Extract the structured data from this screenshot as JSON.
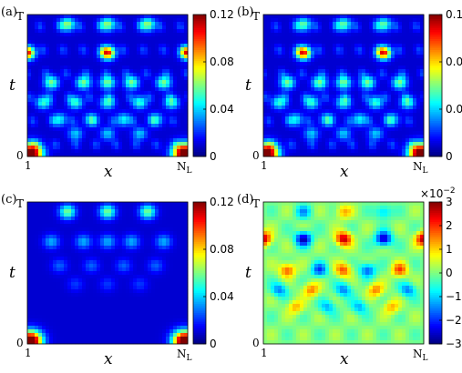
{
  "chart_data": [
    {
      "type": "heatmap",
      "panel_label": "(a)",
      "xlabel": "x",
      "ylabel": "t",
      "x_ticks": [
        "1",
        "N_L"
      ],
      "y_ticks": [
        "0",
        "T"
      ],
      "colorbar": {
        "min": 0,
        "max": 0.12,
        "ticks": [
          "0",
          "0.04",
          "0.08",
          "0.12"
        ],
        "scale_note": ""
      },
      "colormap": "jet",
      "pattern": "a",
      "notable_values": {
        "corner_hotspot": 0.12,
        "edge_spots_mid": 0.09,
        "center_spot": 0.09,
        "background": 0.01
      }
    },
    {
      "type": "heatmap",
      "panel_label": "(b)",
      "xlabel": "x",
      "ylabel": "t",
      "x_ticks": [
        "1",
        "N_L"
      ],
      "y_ticks": [
        "0",
        "T"
      ],
      "colorbar": {
        "min": 0,
        "max": 0.12,
        "ticks": [
          "0",
          "0.04",
          "0.08",
          "0.12"
        ],
        "scale_note": ""
      },
      "colormap": "jet",
      "pattern": "b",
      "notable_values": {
        "corner_hotspot": 0.12,
        "spots_mid": 0.09,
        "background": 0.01
      }
    },
    {
      "type": "heatmap",
      "panel_label": "(c)",
      "xlabel": "x",
      "ylabel": "t",
      "x_ticks": [
        "1",
        "N_L"
      ],
      "y_ticks": [
        "0",
        "T"
      ],
      "colorbar": {
        "min": 0,
        "max": 0.12,
        "ticks": [
          "0",
          "0.04",
          "0.08",
          "0.12"
        ],
        "scale_note": ""
      },
      "colormap": "jet",
      "pattern": "c",
      "notable_values": {
        "corner_hotspot": 0.12,
        "top_spots": 0.05,
        "background": 0.01
      }
    },
    {
      "type": "heatmap",
      "panel_label": "(d)",
      "xlabel": "x",
      "ylabel": "t",
      "x_ticks": [
        "1",
        "N_L"
      ],
      "y_ticks": [
        "0",
        "T"
      ],
      "colorbar": {
        "min": -3,
        "max": 3,
        "ticks": [
          "3",
          "2",
          "1",
          "0",
          "−1",
          "−2",
          "−3"
        ],
        "scale_note": "×10−2"
      },
      "colormap": "jet",
      "pattern": "d",
      "notable_values": {
        "max": 3,
        "min": -3,
        "background": 0
      }
    }
  ]
}
